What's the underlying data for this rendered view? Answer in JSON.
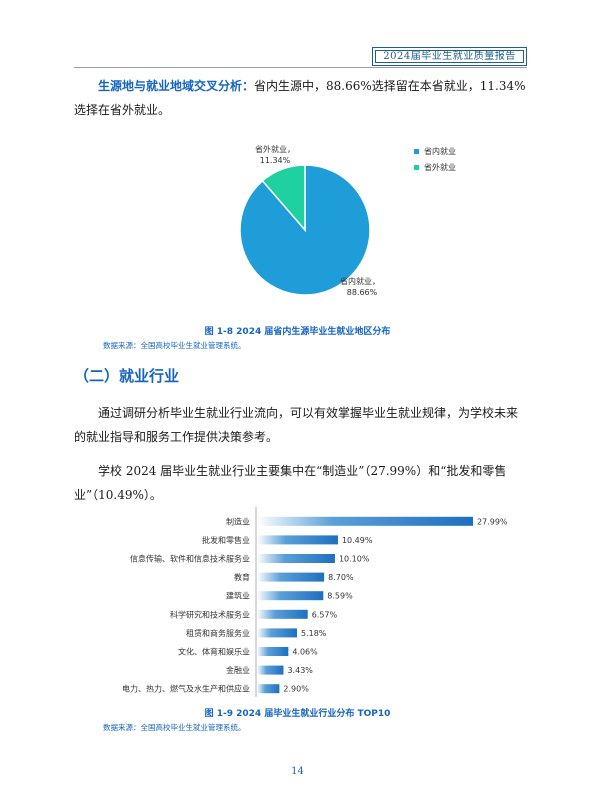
{
  "header": {
    "report_title": "2024届毕业生就业质量报告"
  },
  "paragraph1": {
    "lead": "生源地与就业地域交叉分析：",
    "text": "省内生源中，88.66%选择留在本省就业，11.34%选择在省外就业。"
  },
  "figure1": {
    "caption": "图 1-8   2024 届省内生源毕业生就业地区分布",
    "source": "数据来源：全国高校毕业生就业管理系统。",
    "chart_data": {
      "type": "pie",
      "labels": [
        "省内就业",
        "省外就业"
      ],
      "values": [
        88.66,
        11.34
      ],
      "value_labels": [
        "88.66%",
        "11.34%"
      ],
      "colors": [
        "#1e9dd8",
        "#1fd1a0"
      ],
      "legend_position": "right"
    }
  },
  "section": {
    "title": "（二）就业行业"
  },
  "paragraph2": {
    "text": "通过调研分析毕业生就业行业流向，可以有效掌握毕业生就业规律，为学校未来的就业指导和服务工作提供决策参考。"
  },
  "paragraph3": {
    "text": "学校 2024 届毕业生就业行业主要集中在“制造业”（27.99%）和“批发和零售业”（10.49%）。"
  },
  "figure2": {
    "caption": "图 1-9   2024 届毕业生就业行业分布 TOP10",
    "source": "数据来源：全国高校毕业生就业管理系统。",
    "chart_data": {
      "type": "bar",
      "orientation": "horizontal",
      "categories": [
        "制造业",
        "批发和零售业",
        "信息传输、软件和信息技术服务业",
        "教育",
        "建筑业",
        "科学研究和技术服务业",
        "租赁和商务服务业",
        "文化、体育和娱乐业",
        "金融业",
        "电力、热力、燃气及水生产和供应业"
      ],
      "values": [
        27.99,
        10.49,
        10.1,
        8.7,
        8.59,
        6.57,
        5.18,
        4.06,
        3.43,
        2.9
      ],
      "value_labels": [
        "27.99%",
        "10.49%",
        "10.10%",
        "8.70%",
        "8.59%",
        "6.57%",
        "5.18%",
        "4.06%",
        "3.43%",
        "2.90%"
      ],
      "color": "#1e6fc0"
    }
  },
  "page_number": "14"
}
